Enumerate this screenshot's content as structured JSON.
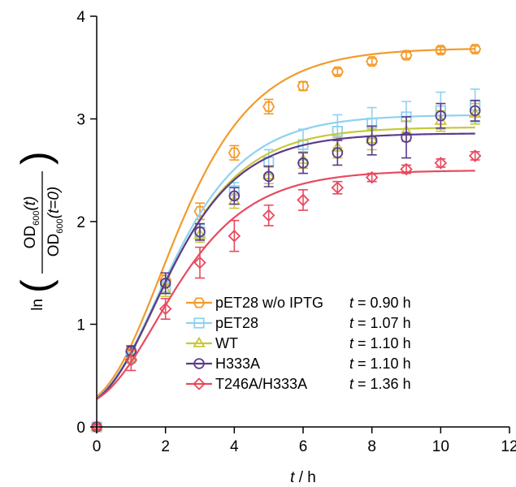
{
  "chart_data": {
    "type": "scatter",
    "xlabel_var": "t",
    "xlabel_unit": " / h",
    "ylabel": {
      "prefix": "ln",
      "numerator": "OD",
      "numerator_sub": "600",
      "numerator_arg": "(t)",
      "denominator": "OD",
      "denominator_sub": "600",
      "denominator_arg": "(t=0)"
    },
    "xlim": [
      0,
      12
    ],
    "ylim": [
      0,
      4
    ],
    "xticks": [
      0,
      2,
      4,
      6,
      8,
      10,
      12
    ],
    "yticks": [
      0,
      1,
      2,
      3,
      4
    ],
    "legend_position": "bottom-center",
    "series": [
      {
        "name": "pET28 w/o IPTG",
        "color": "#F39A2B",
        "marker": "hexagon",
        "annotation": "t = 0.90 h",
        "x": [
          0,
          1,
          2,
          3,
          4,
          5,
          6,
          7,
          8,
          9,
          10,
          11
        ],
        "y": [
          0.0,
          0.73,
          1.43,
          2.1,
          2.67,
          3.12,
          3.32,
          3.46,
          3.56,
          3.62,
          3.67,
          3.68
        ],
        "err": [
          0.02,
          0.05,
          0.05,
          0.08,
          0.07,
          0.07,
          0.04,
          0.03,
          0.03,
          0.03,
          0.03,
          0.03
        ],
        "fit": {
          "A": 3.52,
          "mu": 0.85,
          "lag": 0.31,
          "b": 0.17
        }
      },
      {
        "name": "pET28",
        "color": "#8FD1F0",
        "marker": "square",
        "annotation": "t = 1.07 h",
        "x": [
          0,
          1,
          2,
          3,
          4,
          5,
          6,
          7,
          8,
          9,
          10,
          11
        ],
        "y": [
          0.0,
          0.68,
          1.36,
          1.9,
          2.3,
          2.58,
          2.75,
          2.88,
          2.96,
          3.02,
          3.08,
          3.13
        ],
        "err": [
          0.02,
          0.06,
          0.06,
          0.07,
          0.08,
          0.12,
          0.15,
          0.16,
          0.15,
          0.15,
          0.18,
          0.16
        ],
        "fit": {
          "A": 2.87,
          "mu": 0.73,
          "lag": 0.26,
          "b": 0.17
        }
      },
      {
        "name": "WT",
        "color": "#C7C83A",
        "marker": "triangle",
        "annotation": "t = 1.10 h",
        "x": [
          0,
          1,
          2,
          3,
          4,
          5,
          6,
          7,
          8,
          9,
          10,
          11
        ],
        "y": [
          0.0,
          0.69,
          1.33,
          1.87,
          2.2,
          2.45,
          2.6,
          2.72,
          2.8,
          2.88,
          2.98,
          3.05
        ],
        "err": [
          0.02,
          0.05,
          0.06,
          0.07,
          0.07,
          0.08,
          0.08,
          0.1,
          0.1,
          0.1,
          0.1,
          0.1
        ],
        "fit": {
          "A": 2.75,
          "mu": 0.71,
          "lag": 0.26,
          "b": 0.17
        }
      },
      {
        "name": "H333A",
        "color": "#5B3A8C",
        "marker": "circle",
        "annotation": "t = 1.10 h",
        "x": [
          0,
          1,
          2,
          3,
          4,
          5,
          6,
          7,
          8,
          9,
          10,
          11
        ],
        "y": [
          0.0,
          0.74,
          1.4,
          1.9,
          2.25,
          2.44,
          2.57,
          2.67,
          2.79,
          2.82,
          3.03,
          3.08
        ],
        "err": [
          0.02,
          0.05,
          0.1,
          0.08,
          0.08,
          0.1,
          0.1,
          0.12,
          0.14,
          0.2,
          0.12,
          0.1
        ],
        "fit": {
          "A": 2.69,
          "mu": 0.71,
          "lag": 0.25,
          "b": 0.17
        }
      },
      {
        "name": "T246A/H333A",
        "color": "#E84A5F",
        "marker": "diamond",
        "annotation": "t = 1.36 h",
        "x": [
          0,
          1,
          2,
          3,
          4,
          5,
          6,
          7,
          8,
          9,
          10,
          11
        ],
        "y": [
          0.0,
          0.65,
          1.15,
          1.6,
          1.86,
          2.06,
          2.21,
          2.33,
          2.43,
          2.51,
          2.57,
          2.64
        ],
        "err": [
          0.02,
          0.1,
          0.1,
          0.15,
          0.15,
          0.1,
          0.1,
          0.06,
          0.04,
          0.04,
          0.04,
          0.04
        ],
        "fit": {
          "A": 2.33,
          "mu": 0.57,
          "lag": 0.22,
          "b": 0.17
        }
      }
    ]
  }
}
